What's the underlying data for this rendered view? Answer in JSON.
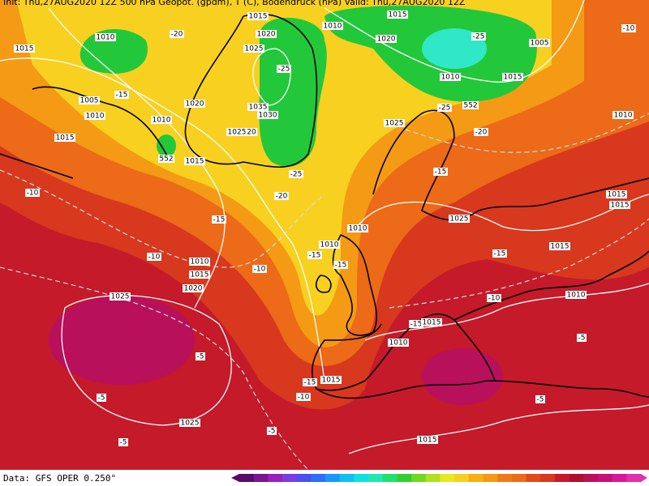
{
  "header": {
    "text": "Init: Thu,27AUG2020 12Z   500 hPa Geopot. (gpdm), T (C), Bodendruck (hPa)   Valid: Thu,27AUG2020 12Z"
  },
  "contour_labels": [
    "1015",
    "1010",
    "-20",
    "1015",
    "1020",
    "1025",
    "-25",
    "1010",
    "1015",
    "1020",
    "-25",
    "1005",
    "-10",
    "1005",
    "-15",
    "1010",
    "1020",
    "1010",
    "1015",
    "552",
    "1015",
    "1035",
    "1030",
    "1025",
    "20",
    "-25",
    "-20",
    "1010",
    "1015",
    "-25",
    "552",
    "1025",
    "-20",
    "1010",
    "-10",
    "-15",
    "-15",
    "1025",
    "1015",
    "1010",
    "1015",
    "1010",
    "-15",
    "-15",
    "-10",
    "1010",
    "1015",
    "-10",
    "1020",
    "-15",
    "1015",
    "1010",
    "-10",
    "1025",
    "-15",
    "1015",
    "1010",
    "-5",
    "-5",
    "-5",
    "-15",
    "1015",
    "-10",
    "-5",
    "1025",
    "-5",
    "-5",
    "1015"
  ],
  "footer": {
    "source": "Data: GFS OPER 0.250°"
  }
}
